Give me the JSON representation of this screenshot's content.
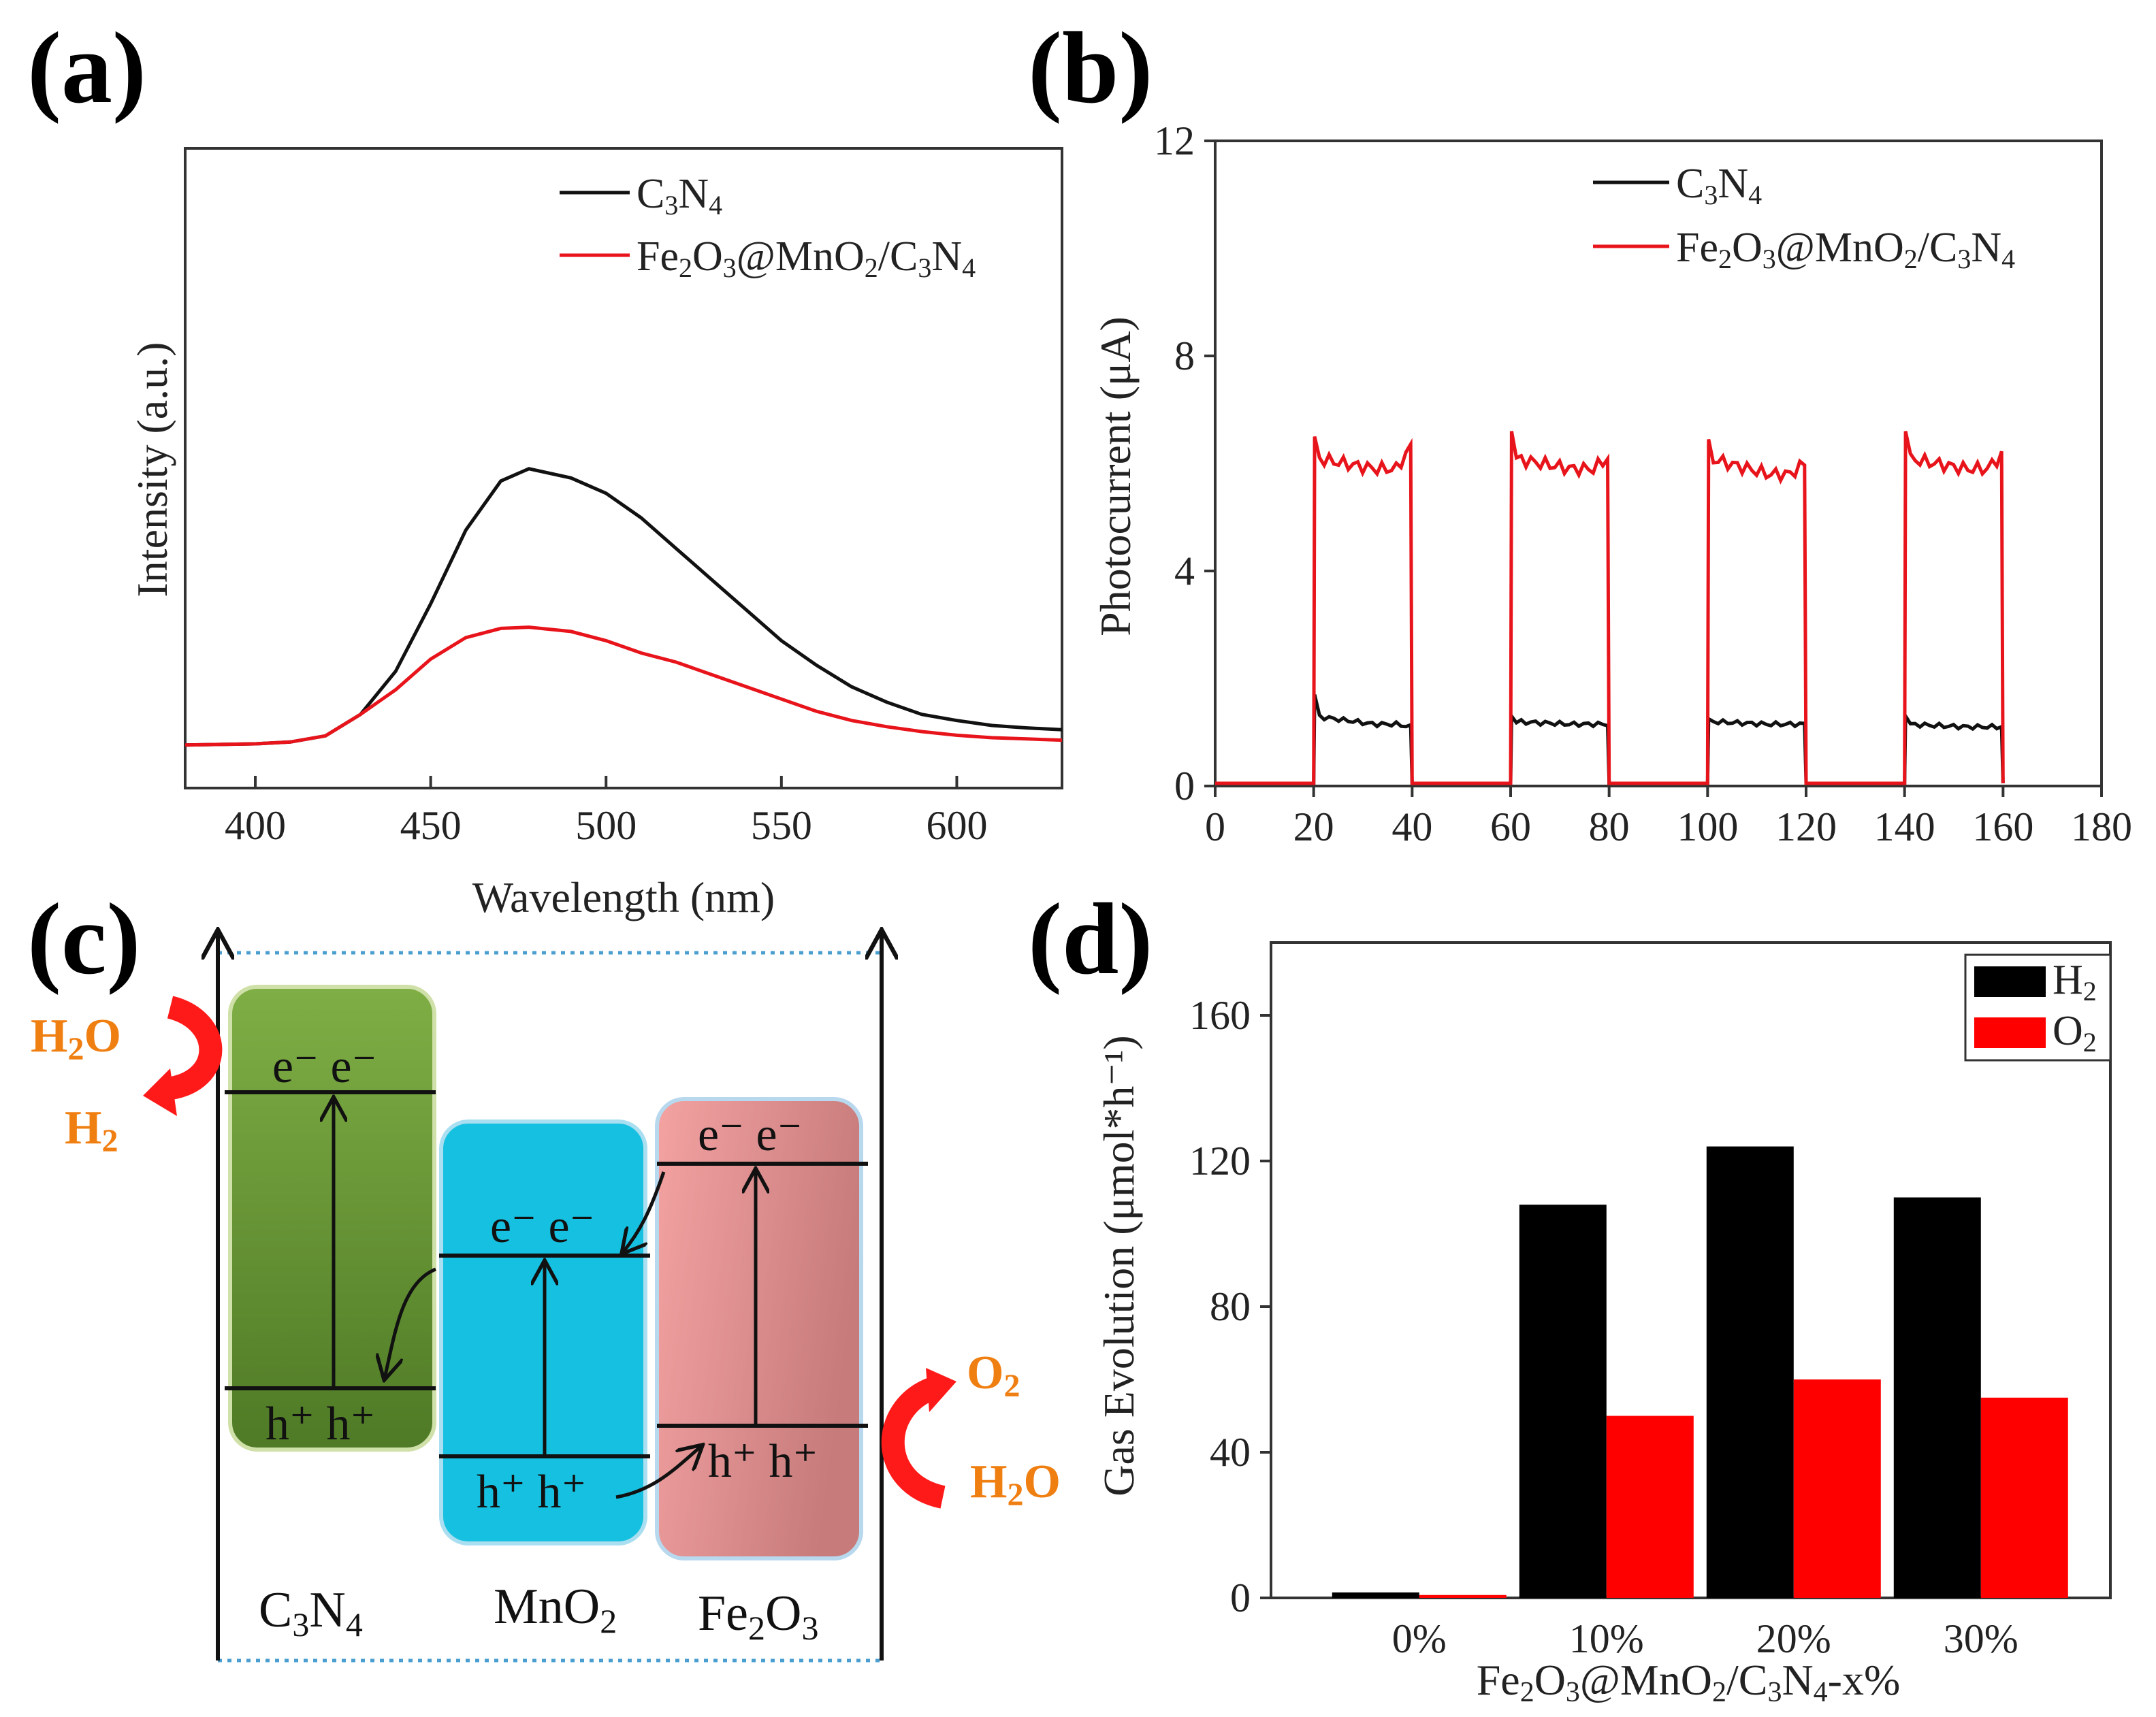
{
  "panels": {
    "a": "(a)",
    "b": "(b)",
    "c": "(c)",
    "d": "(d)"
  },
  "colors": {
    "black": "#111111",
    "red": "#e8141b",
    "orange": "#f07f12",
    "green": "#6a9a38",
    "cyan": "#16c0e0",
    "pink": "#ec8d8d"
  },
  "chart_data": [
    {
      "id": "a",
      "type": "line",
      "xlabel": "Wavelength (nm)",
      "ylabel": "Intensity (a.u.)",
      "xlim": [
        380,
        630
      ],
      "ylim": [
        0,
        100
      ],
      "xticks": [
        "400",
        "450",
        "500",
        "550",
        "600"
      ],
      "legend": [
        {
          "name": "C3N4",
          "base": "C",
          "sub": "3",
          "base2": "N",
          "sub2": "4"
        },
        {
          "name": "Fe2O3@MnO2/C3N4"
        }
      ],
      "series": [
        {
          "name": "C3N4",
          "color": "#111111",
          "x": [
            380,
            400,
            410,
            420,
            430,
            440,
            450,
            460,
            470,
            478,
            490,
            500,
            510,
            520,
            530,
            540,
            550,
            560,
            570,
            580,
            590,
            600,
            610,
            620,
            630
          ],
          "y": [
            7,
            7.2,
            7.5,
            8.5,
            12,
            19,
            30,
            42,
            50,
            52,
            50.5,
            48,
            44,
            39,
            34,
            29,
            24,
            20,
            16.5,
            14,
            12,
            11,
            10.2,
            9.8,
            9.5
          ]
        },
        {
          "name": "Fe2O3@MnO2/C3N4",
          "color": "#e8141b",
          "x": [
            380,
            400,
            410,
            420,
            430,
            440,
            450,
            460,
            470,
            478,
            490,
            500,
            510,
            520,
            530,
            540,
            550,
            560,
            570,
            580,
            590,
            600,
            610,
            620,
            630
          ],
          "y": [
            7,
            7.2,
            7.5,
            8.5,
            12,
            16,
            21,
            24.5,
            26,
            26.2,
            25.5,
            24,
            22,
            20.5,
            18.5,
            16.5,
            14.5,
            12.5,
            11,
            10,
            9.2,
            8.6,
            8.2,
            8,
            7.8
          ]
        }
      ]
    },
    {
      "id": "b",
      "type": "line",
      "xlabel": "",
      "ylabel": "Photocurrent (μA)",
      "xlim": [
        0,
        180
      ],
      "ylim": [
        0,
        12
      ],
      "xticks": [
        "0",
        "20",
        "40",
        "60",
        "80",
        "100",
        "120",
        "140",
        "160",
        "180"
      ],
      "yticks": [
        "0",
        "4",
        "8",
        "12"
      ],
      "on_intervals": [
        [
          20,
          40
        ],
        [
          60,
          80
        ],
        [
          100,
          120
        ],
        [
          140,
          160
        ]
      ],
      "legend": [
        {
          "name": "C3N4"
        },
        {
          "name": "Fe2O3@MnO2/C3N4"
        }
      ],
      "series": [
        {
          "name": "C3N4",
          "color": "#111111",
          "on_values": [
            [
              1.7,
              1.3,
              1.15,
              1.1
            ],
            [
              1.3,
              1.2,
              1.15,
              1.15
            ],
            [
              1.25,
              1.2,
              1.15,
              1.15
            ],
            [
              1.3,
              1.15,
              1.1,
              1.1
            ]
          ],
          "off_value": 0.05
        },
        {
          "name": "Fe2O3@MnO2/C3N4",
          "color": "#e8141b",
          "on_values": [
            [
              6.5,
              6.1,
              5.9,
              6.3
            ],
            [
              6.6,
              6.1,
              5.9,
              6.1
            ],
            [
              6.45,
              6.1,
              5.8,
              6.0
            ],
            [
              6.6,
              6.1,
              5.9,
              6.15
            ]
          ],
          "off_value": 0.05
        }
      ]
    },
    {
      "id": "d",
      "type": "bar",
      "xlabel": "Fe2O3@MnO2/C3N4-x%",
      "ylabel": "Gas Evolution (μmol*h⁻¹)",
      "ylim": [
        0,
        180
      ],
      "yticks": [
        "0",
        "40",
        "80",
        "120",
        "160"
      ],
      "categories": [
        "0%",
        "10%",
        "20%",
        "30%"
      ],
      "series": [
        {
          "name": "H2",
          "color": "#000000",
          "values": [
            1.5,
            108,
            124,
            110
          ]
        },
        {
          "name": "O2",
          "color": "#ff0000",
          "values": [
            0.8,
            50,
            60,
            55
          ]
        }
      ]
    }
  ],
  "diagram_c": {
    "materials": [
      "C3N4",
      "MnO2",
      "Fe2O3"
    ],
    "electron_label": "e⁻  e⁻",
    "hole_label": "h⁺ h⁺",
    "left_in": "H2O",
    "left_out": "H2",
    "right_out": "O2",
    "right_in": "H2O"
  }
}
